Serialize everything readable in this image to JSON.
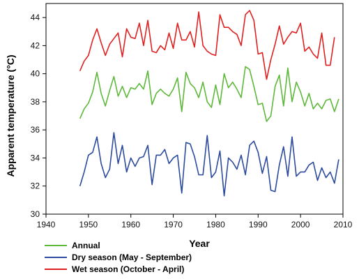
{
  "chart_data": {
    "type": "line",
    "title": "",
    "xlabel": "Year",
    "ylabel": "Apparent temperature (°C)",
    "xlim": [
      1940,
      2010
    ],
    "ylim": [
      30,
      45
    ],
    "xticks": [
      1940,
      1950,
      1960,
      1970,
      1980,
      1990,
      2000,
      2010
    ],
    "yticks": [
      30,
      32,
      34,
      36,
      38,
      40,
      42,
      44
    ],
    "grid": false,
    "legend_position": "bottom-left",
    "x": [
      1948,
      1949,
      1950,
      1951,
      1952,
      1953,
      1954,
      1955,
      1956,
      1957,
      1958,
      1959,
      1960,
      1961,
      1962,
      1963,
      1964,
      1965,
      1966,
      1967,
      1968,
      1969,
      1970,
      1971,
      1972,
      1973,
      1974,
      1975,
      1976,
      1977,
      1978,
      1979,
      1980,
      1981,
      1982,
      1983,
      1984,
      1985,
      1986,
      1987,
      1988,
      1989,
      1990,
      1991,
      1992,
      1993,
      1994,
      1995,
      1996,
      1997,
      1998,
      1999,
      2000,
      2001,
      2002,
      2003,
      2004,
      2005,
      2006,
      2007,
      2008,
      2009
    ],
    "series": [
      {
        "name": "Annual",
        "color": "#5db83a",
        "values": [
          36.8,
          37.5,
          37.9,
          38.7,
          40.1,
          38.6,
          37.7,
          38.8,
          39.8,
          38.4,
          39.1,
          38.3,
          39.0,
          38.9,
          39.3,
          38.9,
          40.2,
          37.8,
          38.6,
          38.9,
          38.6,
          38.4,
          38.9,
          39.7,
          37.3,
          40.1,
          39.3,
          39.0,
          38.3,
          39.4,
          38.0,
          37.6,
          39.2,
          37.8,
          40.0,
          39.0,
          39.4,
          38.9,
          38.3,
          40.5,
          40.3,
          39.1,
          37.8,
          37.9,
          36.6,
          37.0,
          39.1,
          39.9,
          37.7,
          40.4,
          38.0,
          39.4,
          38.7,
          37.7,
          38.6,
          37.5,
          37.9,
          37.5,
          38.1,
          38.2,
          37.3,
          38.2
        ]
      },
      {
        "name": "Dry season (May - September)",
        "color": "#2c4a9e",
        "values": [
          32.0,
          33.0,
          34.2,
          34.4,
          35.5,
          33.6,
          32.6,
          33.2,
          35.8,
          33.6,
          34.9,
          33.0,
          34.0,
          33.4,
          34.0,
          34.1,
          34.9,
          32.1,
          34.2,
          34.2,
          34.6,
          33.6,
          34.0,
          34.2,
          31.5,
          35.1,
          35.0,
          34.1,
          32.8,
          32.8,
          35.6,
          32.6,
          33.0,
          34.5,
          31.3,
          34.0,
          33.7,
          33.2,
          34.2,
          32.8,
          34.9,
          35.2,
          34.4,
          32.9,
          34.1,
          31.7,
          31.6,
          33.5,
          34.8,
          32.7,
          35.5,
          32.7,
          33.0,
          33.0,
          33.5,
          33.7,
          32.4,
          33.3,
          32.6,
          33.0,
          32.2,
          33.9
        ]
      },
      {
        "name": "Wet season (October - April)",
        "color": "#e02020",
        "values": [
          40.2,
          40.9,
          41.3,
          42.4,
          43.2,
          42.2,
          41.3,
          42.1,
          42.5,
          42.9,
          41.2,
          43.2,
          42.6,
          42.5,
          43.6,
          42.0,
          43.8,
          41.6,
          41.5,
          42.0,
          41.7,
          42.9,
          41.8,
          43.6,
          42.4,
          42.4,
          43.0,
          41.9,
          44.4,
          42.0,
          41.6,
          41.4,
          41.3,
          44.2,
          43.3,
          43.3,
          43.0,
          42.8,
          42.0,
          44.2,
          44.5,
          43.8,
          41.4,
          41.5,
          39.6,
          41.0,
          42.1,
          43.4,
          42.1,
          42.6,
          43.0,
          42.9,
          43.6,
          41.6,
          41.9,
          41.4,
          41.1,
          42.9,
          40.6,
          40.6,
          42.6,
          null
        ]
      }
    ]
  }
}
